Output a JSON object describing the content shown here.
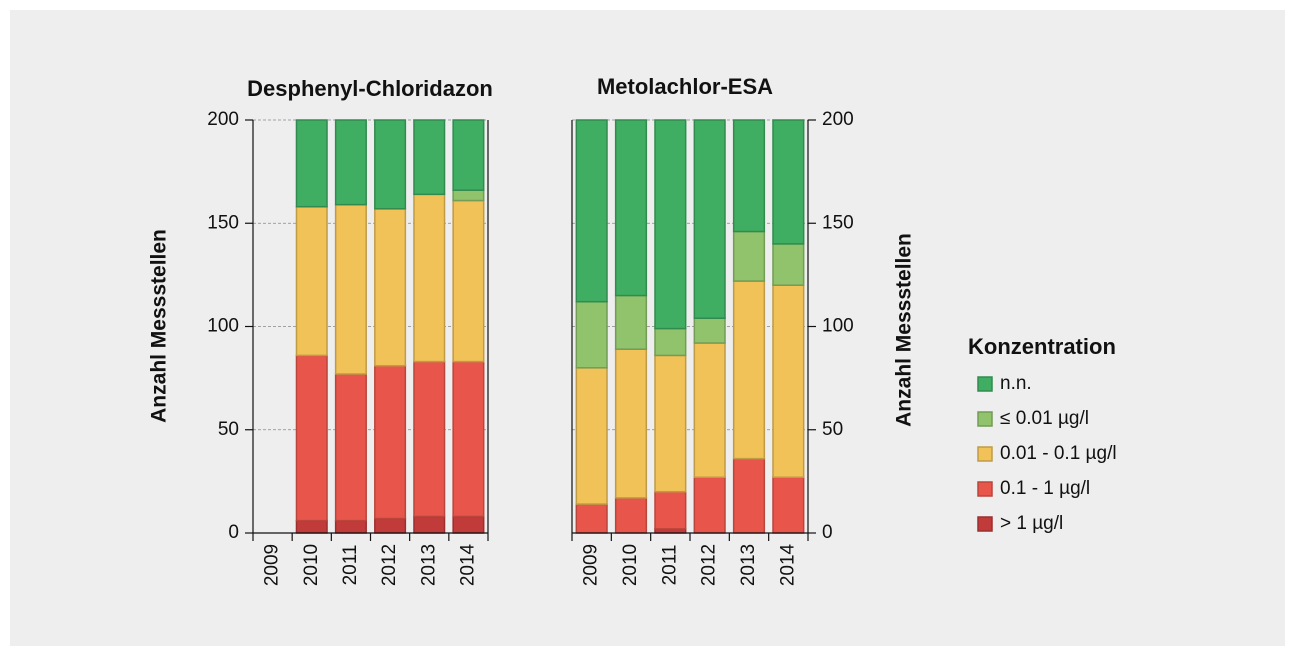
{
  "chart_data": [
    {
      "type": "bar",
      "stacked": true,
      "title": "Desphenyl-Chloridazon",
      "ylabel": "Anzahl Messstellen",
      "yaxis_side": "left",
      "categories": [
        "2009",
        "2010",
        "2011",
        "2012",
        "2013",
        "2014"
      ],
      "ylim": [
        0,
        200
      ],
      "yticks": [
        0,
        50,
        100,
        150,
        200
      ],
      "grid": true,
      "series": [
        {
          "color": "#3fae62",
          "values": [
            null,
            42,
            41,
            43,
            36,
            34
          ]
        },
        {
          "color": "#90c36c",
          "values": [
            null,
            0,
            0,
            0,
            0,
            5
          ]
        },
        {
          "color": "#f0c257",
          "values": [
            null,
            72,
            82,
            76,
            81,
            78
          ]
        },
        {
          "color": "#e8564b",
          "values": [
            null,
            80,
            71,
            74,
            75,
            75
          ]
        },
        {
          "color": "#c23b3b",
          "values": [
            null,
            6,
            6,
            7,
            8,
            8
          ]
        }
      ]
    },
    {
      "type": "bar",
      "stacked": true,
      "title": "Metolachlor-ESA",
      "ylabel": "Anzahl Messstellen",
      "yaxis_side": "right",
      "categories": [
        "2009",
        "2010",
        "2011",
        "2012",
        "2013",
        "2014"
      ],
      "ylim": [
        0,
        200
      ],
      "yticks": [
        0,
        50,
        100,
        150,
        200
      ],
      "grid": true,
      "series": [
        {
          "color": "#3fae62",
          "values": [
            88,
            85,
            101,
            96,
            54,
            60
          ]
        },
        {
          "color": "#90c36c",
          "values": [
            32,
            26,
            13,
            12,
            24,
            20
          ]
        },
        {
          "color": "#f0c257",
          "values": [
            66,
            72,
            66,
            65,
            86,
            93
          ]
        },
        {
          "color": "#e8564b",
          "values": [
            14,
            17,
            18,
            27,
            36,
            27
          ]
        },
        {
          "color": "#c23b3b",
          "values": [
            0,
            0,
            2,
            0,
            0,
            0
          ]
        }
      ]
    }
  ],
  "legend": {
    "title": "Konzentration",
    "entries": [
      "n.n.",
      "≤ 0.01 µg/l",
      "0.01 - 0.1 µg/l",
      "0.1 - 1 µg/l",
      "> 1 µg/l"
    ]
  }
}
